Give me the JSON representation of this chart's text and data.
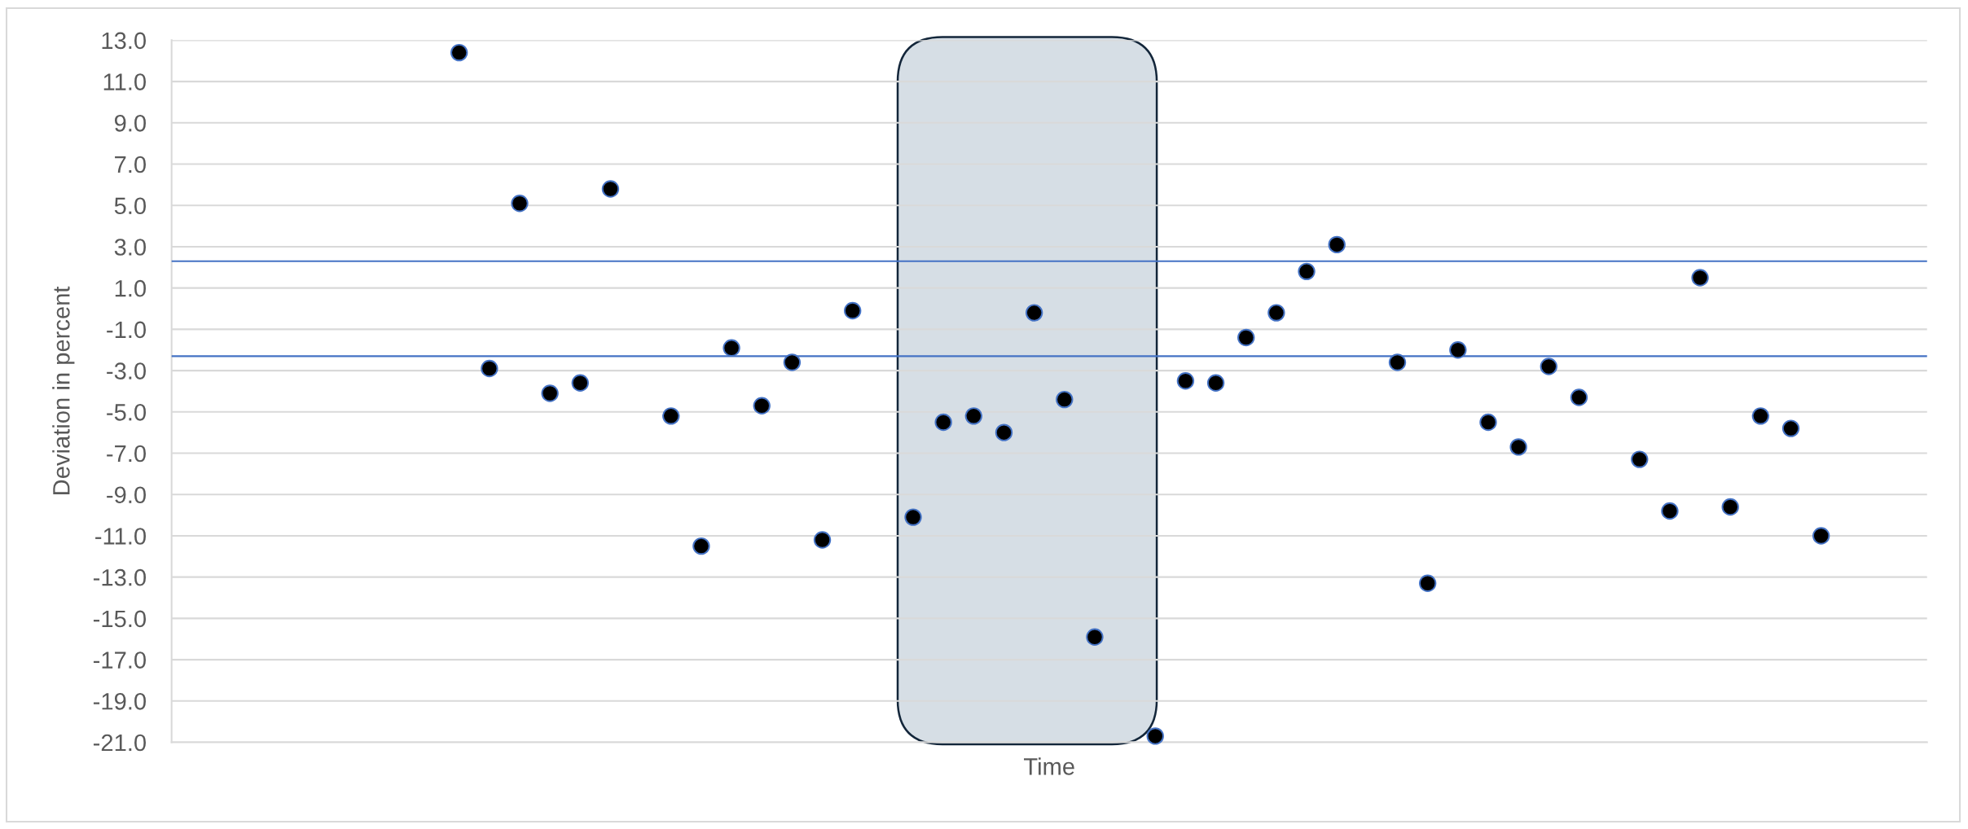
{
  "chart_data": {
    "type": "scatter",
    "xlabel": "Time",
    "ylabel": "Deviation in percent",
    "categories": [
      null,
      null,
      null,
      null,
      null,
      null,
      null,
      null,
      null,
      null,
      null,
      null,
      null,
      null,
      null,
      null,
      null,
      null,
      null,
      null,
      null,
      null,
      null,
      null,
      null,
      null,
      null,
      null,
      null,
      null,
      null,
      null,
      null,
      null,
      null,
      null,
      null,
      null,
      null,
      null,
      null,
      null,
      null,
      null,
      null,
      null,
      null,
      null,
      null,
      null,
      null,
      null,
      null,
      null,
      null,
      null,
      null,
      null
    ],
    "series": [
      {
        "color": "#000000",
        "values": [
          null,
          null,
          null,
          null,
          null,
          null,
          null,
          null,
          null,
          12.4,
          -2.9,
          5.1,
          -4.1,
          -3.6,
          5.8,
          null,
          -5.2,
          -11.5,
          -1.9,
          -4.7,
          -2.6,
          -11.2,
          -0.1,
          null,
          -10.1,
          -5.5,
          -5.2,
          -6.0,
          -0.2,
          -4.4,
          -15.9,
          null,
          -20.7,
          -3.5,
          -3.6,
          -1.4,
          -0.2,
          1.8,
          3.1,
          null,
          -2.6,
          -13.3,
          -2.0,
          -5.5,
          -6.7,
          -2.8,
          -4.3,
          null,
          -7.3,
          -9.8,
          1.5,
          -9.6,
          -5.2,
          -5.8,
          -11.0,
          null,
          null,
          null
        ]
      }
    ],
    "ylim": [
      -21,
      13
    ],
    "yticks": [
      {
        "value": 13,
        "label": "13.0"
      },
      {
        "value": 11,
        "label": "11.0"
      },
      {
        "value": 9,
        "label": "9.0"
      },
      {
        "value": 7,
        "label": "7.0"
      },
      {
        "value": 5,
        "label": "5.0"
      },
      {
        "value": 3,
        "label": "3.0"
      },
      {
        "value": 1,
        "label": "1.0"
      },
      {
        "value": -1,
        "label": "-1.0"
      },
      {
        "value": -3,
        "label": "-3.0"
      },
      {
        "value": -5,
        "label": "-5.0"
      },
      {
        "value": -7,
        "label": "-7.0"
      },
      {
        "value": -9,
        "label": "-9.0"
      },
      {
        "value": -11,
        "label": "-11.0"
      },
      {
        "value": -13,
        "label": "-13.0"
      },
      {
        "value": -15,
        "label": "-15.0"
      },
      {
        "value": -17,
        "label": "-17.0"
      },
      {
        "value": -19,
        "label": "-19.0"
      },
      {
        "value": -21,
        "label": "-21.0"
      }
    ],
    "grid": "y",
    "marker": "circle",
    "ref_lines": [
      {
        "axis": "y",
        "value": 2.3,
        "color": "#4472c4"
      },
      {
        "axis": "y",
        "value": -2.3,
        "color": "#4472c4"
      }
    ]
  }
}
